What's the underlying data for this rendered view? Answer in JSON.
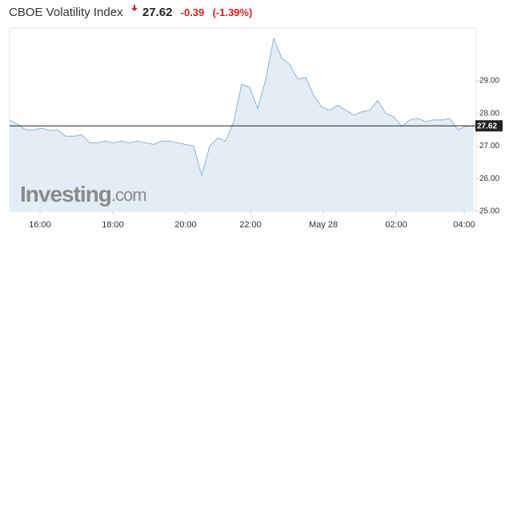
{
  "header": {
    "title": "CBOE Volatility Index",
    "price": 27.62,
    "change": "-0.39",
    "change_percent": "(-1.39%)"
  },
  "watermark": [
    "Investing",
    ".com"
  ],
  "chart_data": {
    "type": "area",
    "values": [
      27.8,
      27.67,
      27.5,
      27.5,
      27.55,
      27.48,
      27.5,
      27.3,
      27.3,
      27.35,
      27.1,
      27.1,
      27.15,
      27.1,
      27.15,
      27.1,
      27.15,
      27.1,
      27.05,
      27.15,
      27.15,
      27.1,
      27.05,
      27.0,
      26.1,
      27.0,
      27.25,
      27.15,
      27.75,
      28.9,
      28.8,
      28.15,
      29.05,
      30.3,
      29.7,
      29.5,
      29.05,
      29.1,
      28.55,
      28.2,
      28.1,
      28.25,
      28.1,
      27.95,
      28.05,
      28.1,
      28.4,
      28.0,
      27.9,
      27.6,
      27.8,
      27.85,
      27.75,
      27.8,
      27.8,
      27.85,
      27.5,
      27.6,
      27.62
    ],
    "line_color": "#8ab4d4",
    "fill_color": "#e4edf5",
    "xlim": [
      0,
      58
    ],
    "xticks": [
      {
        "value": 3.8,
        "label": "16:00"
      },
      {
        "value": 12.9,
        "label": "18:00"
      },
      {
        "value": 22,
        "label": "20:00"
      },
      {
        "value": 30.1,
        "label": "22:00"
      },
      {
        "value": 39.2,
        "label": "May 28"
      },
      {
        "value": 48.3,
        "label": "02:00"
      },
      {
        "value": 56.8,
        "label": "04:00"
      }
    ],
    "ylim": [
      25,
      30.62
    ],
    "yticks": [
      {
        "value": 25,
        "label": "25.00"
      },
      {
        "value": 26,
        "label": "26.00"
      },
      {
        "value": 27,
        "label": "27.00"
      },
      {
        "value": 28,
        "label": "28.00"
      },
      {
        "value": 29,
        "label": "29.00"
      }
    ],
    "last_value": {
      "value": 27.62,
      "label": "27.62"
    }
  }
}
